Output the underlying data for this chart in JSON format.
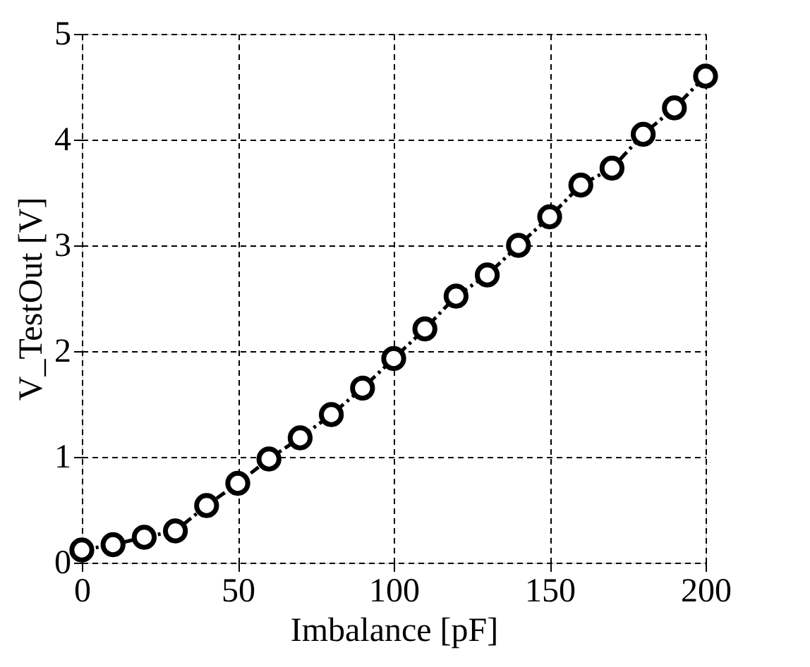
{
  "chart_data": {
    "type": "line",
    "xlabel": "Imbalance [pF]",
    "ylabel": "V_TestOut [V]",
    "x": [
      0,
      10,
      20,
      30,
      40,
      50,
      60,
      70,
      80,
      90,
      100,
      110,
      120,
      130,
      140,
      150,
      160,
      170,
      180,
      190,
      200
    ],
    "series": [
      {
        "color": "#000000",
        "values": [
          0.12,
          0.17,
          0.24,
          0.3,
          0.54,
          0.75,
          0.98,
          1.18,
          1.4,
          1.65,
          1.93,
          2.21,
          2.52,
          2.72,
          3.0,
          3.27,
          3.57,
          3.73,
          4.05,
          4.3,
          4.6
        ]
      }
    ],
    "xlim": [
      0,
      200
    ],
    "ylim": [
      0,
      5
    ],
    "xticks": [
      0,
      50,
      100,
      150,
      200
    ],
    "yticks": [
      0,
      1,
      2,
      3,
      4,
      5
    ],
    "grid": true,
    "marker": "circle",
    "line_style": "dashed"
  }
}
